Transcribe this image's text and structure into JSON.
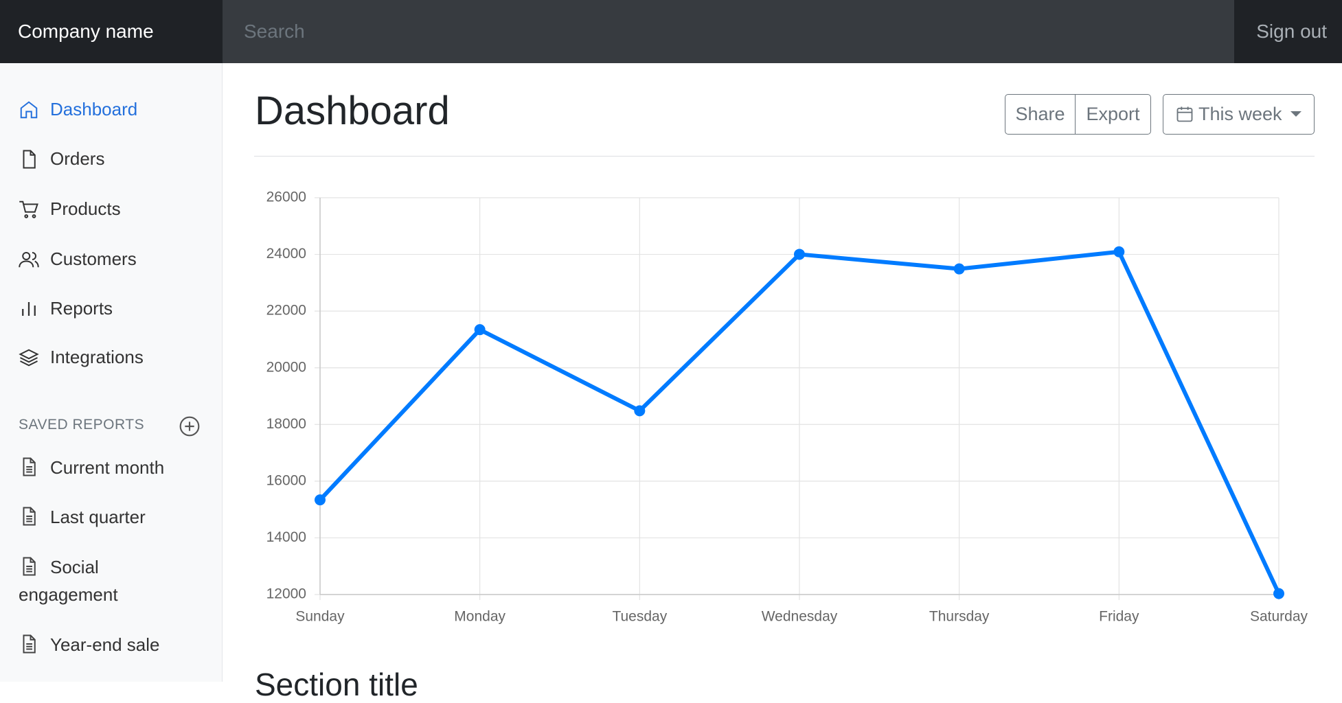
{
  "header": {
    "brand": "Company name",
    "search_placeholder": "Search",
    "sign_out": "Sign out"
  },
  "sidebar": {
    "nav": [
      "Dashboard",
      "Orders",
      "Products",
      "Customers",
      "Reports",
      "Integrations"
    ],
    "saved_reports_heading": "SAVED REPORTS",
    "saved_reports": [
      "Current month",
      "Last quarter",
      "Social engagement",
      "Year-end sale"
    ]
  },
  "main": {
    "title": "Dashboard",
    "buttons": [
      "Share",
      "Export"
    ],
    "period": "This week",
    "section_title": "Section title"
  },
  "chart_data": {
    "type": "line",
    "categories": [
      "Sunday",
      "Monday",
      "Tuesday",
      "Wednesday",
      "Thursday",
      "Friday",
      "Saturday"
    ],
    "values": [
      15339,
      21345,
      18483,
      24003,
      23489,
      24092,
      12034
    ],
    "color": "#007bff",
    "ylim": [
      12000,
      26000
    ],
    "yticks": [
      12000,
      14000,
      16000,
      18000,
      20000,
      22000,
      24000,
      26000
    ],
    "grid": true
  }
}
